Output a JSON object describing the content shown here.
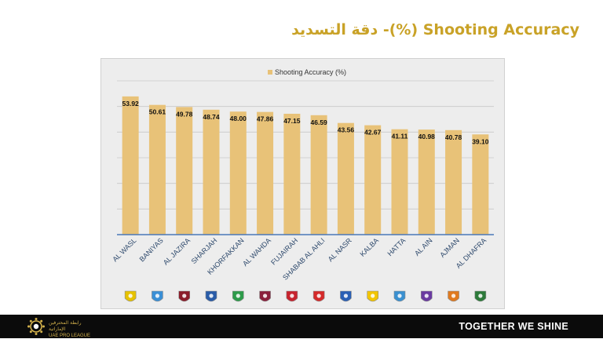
{
  "slide": {
    "title": "دقة التسديد -(%) Shooting Accuracy"
  },
  "chart_data": {
    "type": "bar",
    "title": "",
    "legend": "Shooting Accuracy (%)",
    "legend_position": "top",
    "categories": [
      "AL WASL",
      "BANIYAS",
      "AL JAZIRA",
      "SHARJAH",
      "KHORFAKKAN",
      "AL WAHDA",
      "FUJAIRAH",
      "SHABAB AL AHLI",
      "AL NASR",
      "KALBA",
      "HATTA",
      "AL AIN",
      "AJMAN",
      "AL DHAFRA"
    ],
    "values": [
      53.92,
      50.61,
      49.78,
      48.74,
      48.0,
      47.86,
      47.15,
      46.59,
      43.56,
      42.67,
      41.11,
      40.98,
      40.78,
      39.1
    ],
    "value_labels": [
      "53.92",
      "50.61",
      "49.78",
      "48.74",
      "48.00",
      "47.86",
      "47.15",
      "46.59",
      "43.56",
      "42.67",
      "41.11",
      "40.98",
      "40.78",
      "39.10"
    ],
    "ylim": [
      0,
      60
    ],
    "grid": true,
    "xlabel": "",
    "ylabel": "",
    "bar_color": "#e8c278",
    "label_color": "#111111"
  },
  "team_badges": [
    {
      "team": "AL WASL",
      "color": "#e6c200"
    },
    {
      "team": "BANIYAS",
      "color": "#3a8fd6"
    },
    {
      "team": "AL JAZIRA",
      "color": "#8b1c2a"
    },
    {
      "team": "SHARJAH",
      "color": "#2a5ca8"
    },
    {
      "team": "KHORFAKKAN",
      "color": "#2e9b4a"
    },
    {
      "team": "AL WAHDA",
      "color": "#8a1f3c"
    },
    {
      "team": "FUJAIRAH",
      "color": "#c7232e"
    },
    {
      "team": "SHABAB AL AHLI",
      "color": "#d42a2a"
    },
    {
      "team": "AL NASR",
      "color": "#2a5fb5"
    },
    {
      "team": "KALBA",
      "color": "#f2c500"
    },
    {
      "team": "HATTA",
      "color": "#3a90d0"
    },
    {
      "team": "AL AIN",
      "color": "#6a3aa0"
    },
    {
      "team": "AJMAN",
      "color": "#e07a1f"
    },
    {
      "team": "AL DHAFRA",
      "color": "#2d7a3a"
    }
  ],
  "footer": {
    "league_name_ar": "رابطة المحترفين الإماراتية",
    "league_name_en": "UAE PRO LEAGUE",
    "slogan": "TOGETHER WE SHINE",
    "accent": "#d4b24c"
  }
}
